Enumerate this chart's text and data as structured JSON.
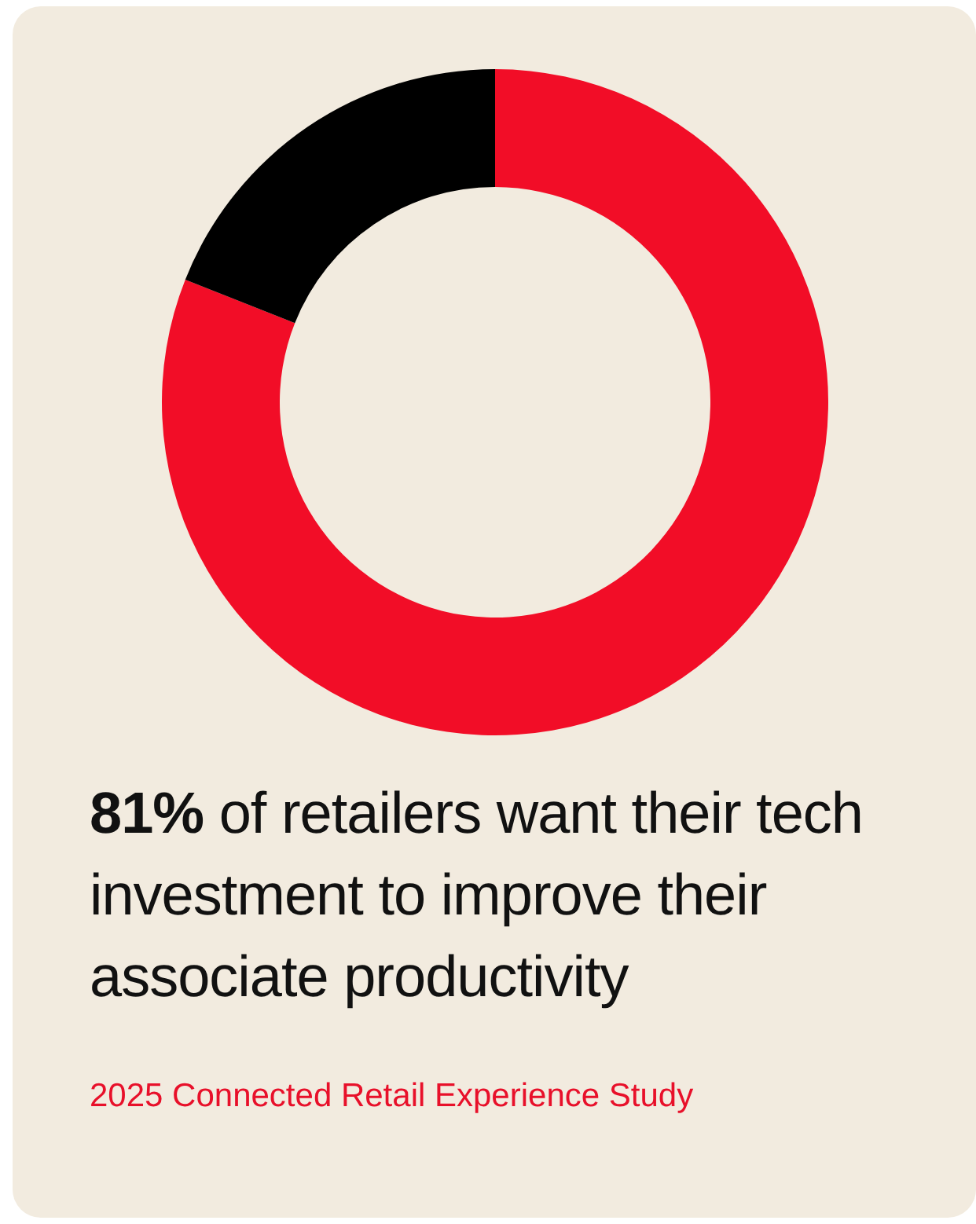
{
  "chart_data": {
    "type": "donut",
    "title": "81% of retailers want their tech investment to improve their associate productivity",
    "categories": [
      null,
      null
    ],
    "values": [
      81,
      19
    ],
    "colors": [
      "#f20d27",
      "#000000"
    ],
    "annotations": [
      "2025 Connected Retail Experience Study"
    ]
  }
}
